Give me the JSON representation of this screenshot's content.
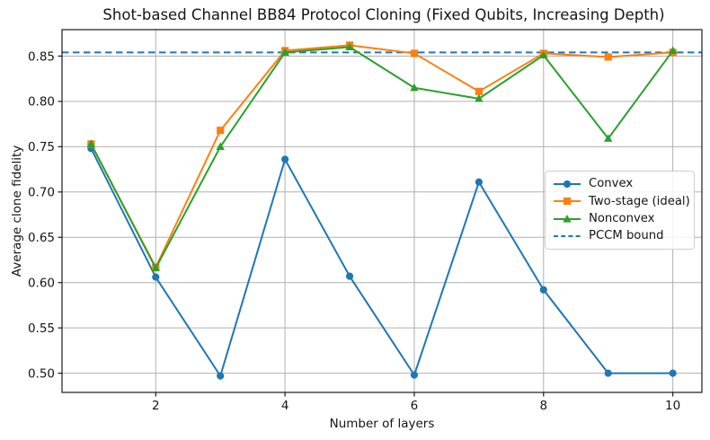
{
  "chart_data": {
    "type": "line",
    "title": "Shot-based Channel BB84 Protocol Cloning (Fixed Qubits, Increasing Depth)",
    "xlabel": "Number of layers",
    "ylabel": "Average clone fidelity",
    "x": [
      1,
      2,
      3,
      4,
      5,
      6,
      7,
      8,
      9,
      10
    ],
    "xticks": [
      2,
      4,
      6,
      8,
      10
    ],
    "yticks": [
      0.5,
      0.55,
      0.6,
      0.65,
      0.7,
      0.75,
      0.8,
      0.85
    ],
    "xlim": [
      0.55,
      10.45
    ],
    "ylim": [
      0.4788,
      0.8792
    ],
    "grid": true,
    "legend_position": "center right",
    "series": [
      {
        "name": "Convex",
        "color": "#1f77b4",
        "marker": "circle",
        "values": [
          0.748,
          0.606,
          0.497,
          0.736,
          0.607,
          0.498,
          0.711,
          0.592,
          0.5,
          0.5
        ]
      },
      {
        "name": "Two-stage (ideal)",
        "color": "#ff7f0e",
        "marker": "square",
        "values": [
          0.753,
          0.617,
          0.768,
          0.856,
          0.862,
          0.853,
          0.811,
          0.853,
          0.849,
          0.854
        ]
      },
      {
        "name": "Nonconvex",
        "color": "#2ca02c",
        "marker": "triangle",
        "values": [
          0.753,
          0.616,
          0.75,
          0.854,
          0.86,
          0.815,
          0.803,
          0.851,
          0.759,
          0.856
        ]
      }
    ],
    "hline": {
      "label": "PCCM bound",
      "value": 0.854,
      "color": "#1f77b4",
      "style": "dashed"
    },
    "style": {
      "grid_color": "#b0b0b0",
      "spine_color": "#1a1a1a",
      "text_color": "#151515"
    }
  }
}
